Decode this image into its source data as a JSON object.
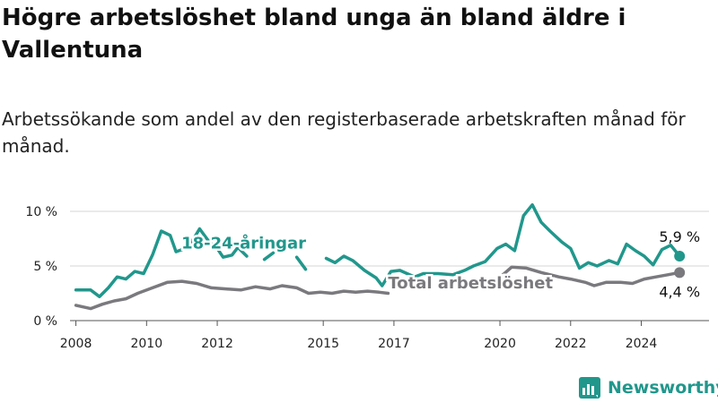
{
  "title": "Högre arbetslöshet bland unga än bland äldre i Vallentuna",
  "subtitle": "Arbetssökande som andel av den registerbaserade arbetskraften månad för månad.",
  "brand": "Newsworthy",
  "colors": {
    "youth": "#21978c",
    "total": "#7a7a7e",
    "grid": "#d6d6d6",
    "text": "#222222"
  },
  "chart_data": {
    "type": "line",
    "x_ticks": [
      "2008",
      "2010",
      "2012",
      "2015",
      "2017",
      "2020",
      "2022",
      "2024"
    ],
    "y_ticks": [
      "0 %",
      "5 %",
      "10 %"
    ],
    "ylim": [
      0,
      10
    ],
    "xlim": [
      "2007-11",
      "2025-12"
    ],
    "grid": true,
    "series": [
      {
        "name": "18-24-åringar",
        "color": "#21978c",
        "end_label": "5,9 %",
        "points": [
          [
            "2008-01",
            2.8
          ],
          [
            "2008-06",
            2.8
          ],
          [
            "2008-09",
            2.2
          ],
          [
            "2008-12",
            3.0
          ],
          [
            "2009-03",
            4.0
          ],
          [
            "2009-06",
            3.8
          ],
          [
            "2009-09",
            4.5
          ],
          [
            "2009-12",
            4.3
          ],
          [
            "2010-03",
            6.0
          ],
          [
            "2010-06",
            8.2
          ],
          [
            "2010-09",
            7.8
          ],
          [
            "2010-11",
            6.3
          ],
          [
            "2011-02",
            6.6
          ],
          [
            "2011-05",
            7.5
          ],
          [
            "2011-07",
            8.4
          ],
          [
            "2011-10",
            7.3
          ],
          [
            "2012-01",
            6.6
          ],
          [
            "2012-03",
            5.8
          ],
          [
            "2012-06",
            6.0
          ],
          [
            "2012-08",
            6.7
          ],
          [
            "2012-11",
            5.9
          ],
          null,
          [
            "2013-05",
            5.6
          ],
          [
            "2013-08",
            6.2
          ],
          null,
          [
            "2014-04",
            5.8
          ],
          [
            "2014-07",
            4.7
          ],
          null,
          [
            "2015-02",
            5.7
          ],
          [
            "2015-05",
            5.3
          ],
          [
            "2015-08",
            5.9
          ],
          [
            "2015-11",
            5.5
          ],
          [
            "2016-03",
            4.6
          ],
          [
            "2016-07",
            3.9
          ],
          [
            "2016-09",
            3.2
          ],
          [
            "2016-12",
            4.5
          ],
          [
            "2017-03",
            4.6
          ],
          [
            "2017-08",
            4.0
          ],
          [
            "2017-11",
            4.3
          ],
          [
            "2018-04",
            4.3
          ],
          [
            "2018-09",
            4.2
          ],
          [
            "2019-01",
            4.6
          ],
          [
            "2019-04",
            5.0
          ],
          [
            "2019-08",
            5.4
          ],
          [
            "2019-12",
            6.6
          ],
          [
            "2020-03",
            7.0
          ],
          [
            "2020-06",
            6.4
          ],
          [
            "2020-09",
            9.6
          ],
          [
            "2020-12",
            10.6
          ],
          [
            "2021-03",
            9.0
          ],
          [
            "2021-06",
            8.2
          ],
          [
            "2021-10",
            7.2
          ],
          [
            "2022-01",
            6.6
          ],
          [
            "2022-04",
            4.8
          ],
          [
            "2022-07",
            5.3
          ],
          [
            "2022-10",
            5.0
          ],
          [
            "2023-02",
            5.5
          ],
          [
            "2023-05",
            5.2
          ],
          [
            "2023-08",
            7.0
          ],
          [
            "2023-11",
            6.4
          ],
          [
            "2024-02",
            5.9
          ],
          [
            "2024-05",
            5.1
          ],
          [
            "2024-08",
            6.5
          ],
          [
            "2024-11",
            6.9
          ],
          [
            "2025-02",
            5.9
          ]
        ]
      },
      {
        "name": "Total arbetslöshet",
        "color": "#7a7a7e",
        "end_label": "4,4 %",
        "points": [
          [
            "2008-01",
            1.4
          ],
          [
            "2008-06",
            1.1
          ],
          [
            "2008-10",
            1.5
          ],
          [
            "2009-02",
            1.8
          ],
          [
            "2009-06",
            2.0
          ],
          [
            "2009-10",
            2.5
          ],
          [
            "2010-03",
            3.0
          ],
          [
            "2010-08",
            3.5
          ],
          [
            "2011-01",
            3.6
          ],
          [
            "2011-06",
            3.4
          ],
          [
            "2011-11",
            3.0
          ],
          [
            "2012-04",
            2.9
          ],
          [
            "2012-09",
            2.8
          ],
          [
            "2013-02",
            3.1
          ],
          [
            "2013-07",
            2.9
          ],
          [
            "2013-11",
            3.2
          ],
          [
            "2014-04",
            3.0
          ],
          [
            "2014-08",
            2.5
          ],
          [
            "2014-12",
            2.6
          ],
          [
            "2015-04",
            2.5
          ],
          [
            "2015-08",
            2.7
          ],
          [
            "2015-12",
            2.6
          ],
          [
            "2016-04",
            2.7
          ],
          [
            "2016-08",
            2.6
          ],
          [
            "2016-11",
            2.5
          ],
          null,
          [
            "2020-02",
            4.2
          ],
          [
            "2020-05",
            4.9
          ],
          [
            "2020-10",
            4.8
          ],
          [
            "2021-03",
            4.4
          ],
          [
            "2021-09",
            4.0
          ],
          [
            "2022-01",
            3.8
          ],
          [
            "2022-06",
            3.5
          ],
          [
            "2022-09",
            3.2
          ],
          [
            "2023-01",
            3.5
          ],
          [
            "2023-06",
            3.5
          ],
          [
            "2023-10",
            3.4
          ],
          [
            "2024-02",
            3.8
          ],
          [
            "2024-06",
            4.0
          ],
          [
            "2024-10",
            4.2
          ],
          [
            "2025-02",
            4.4
          ]
        ]
      }
    ]
  }
}
